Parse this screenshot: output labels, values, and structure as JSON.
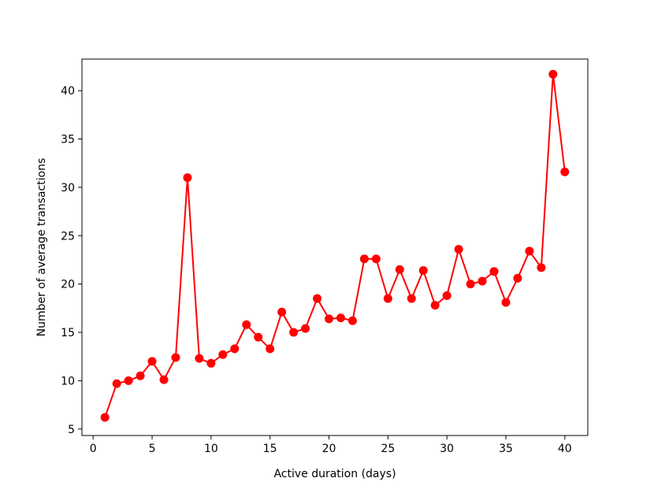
{
  "chart_data": {
    "type": "line",
    "xlabel": "Active duration (days)",
    "ylabel": "Number of average transactions",
    "x": [
      1,
      2,
      3,
      4,
      5,
      6,
      7,
      8,
      9,
      10,
      11,
      12,
      13,
      14,
      15,
      16,
      17,
      18,
      19,
      20,
      21,
      22,
      23,
      24,
      25,
      26,
      27,
      28,
      29,
      30,
      31,
      32,
      33,
      34,
      35,
      36,
      37,
      38,
      39,
      40
    ],
    "series": [
      {
        "color": "#ff0000",
        "values": [
          6.2,
          9.7,
          10.0,
          10.5,
          12.0,
          10.1,
          12.4,
          31.0,
          12.3,
          11.8,
          12.7,
          13.3,
          15.8,
          14.5,
          13.3,
          17.1,
          15.0,
          15.4,
          18.5,
          16.4,
          16.5,
          16.2,
          22.6,
          22.6,
          18.5,
          21.5,
          18.5,
          21.4,
          17.8,
          18.8,
          23.6,
          20.0,
          20.3,
          21.3,
          18.1,
          20.6,
          23.4,
          21.7,
          41.7,
          31.6
        ]
      }
    ],
    "xlim": [
      -0.95,
      41.95
    ],
    "xticks": [
      0,
      5,
      10,
      15,
      20,
      25,
      30,
      35,
      40
    ],
    "ylim": [
      4.33,
      43.27
    ],
    "yticks": [
      5,
      10,
      15,
      20,
      25,
      30,
      35,
      40
    ],
    "grid": false
  }
}
